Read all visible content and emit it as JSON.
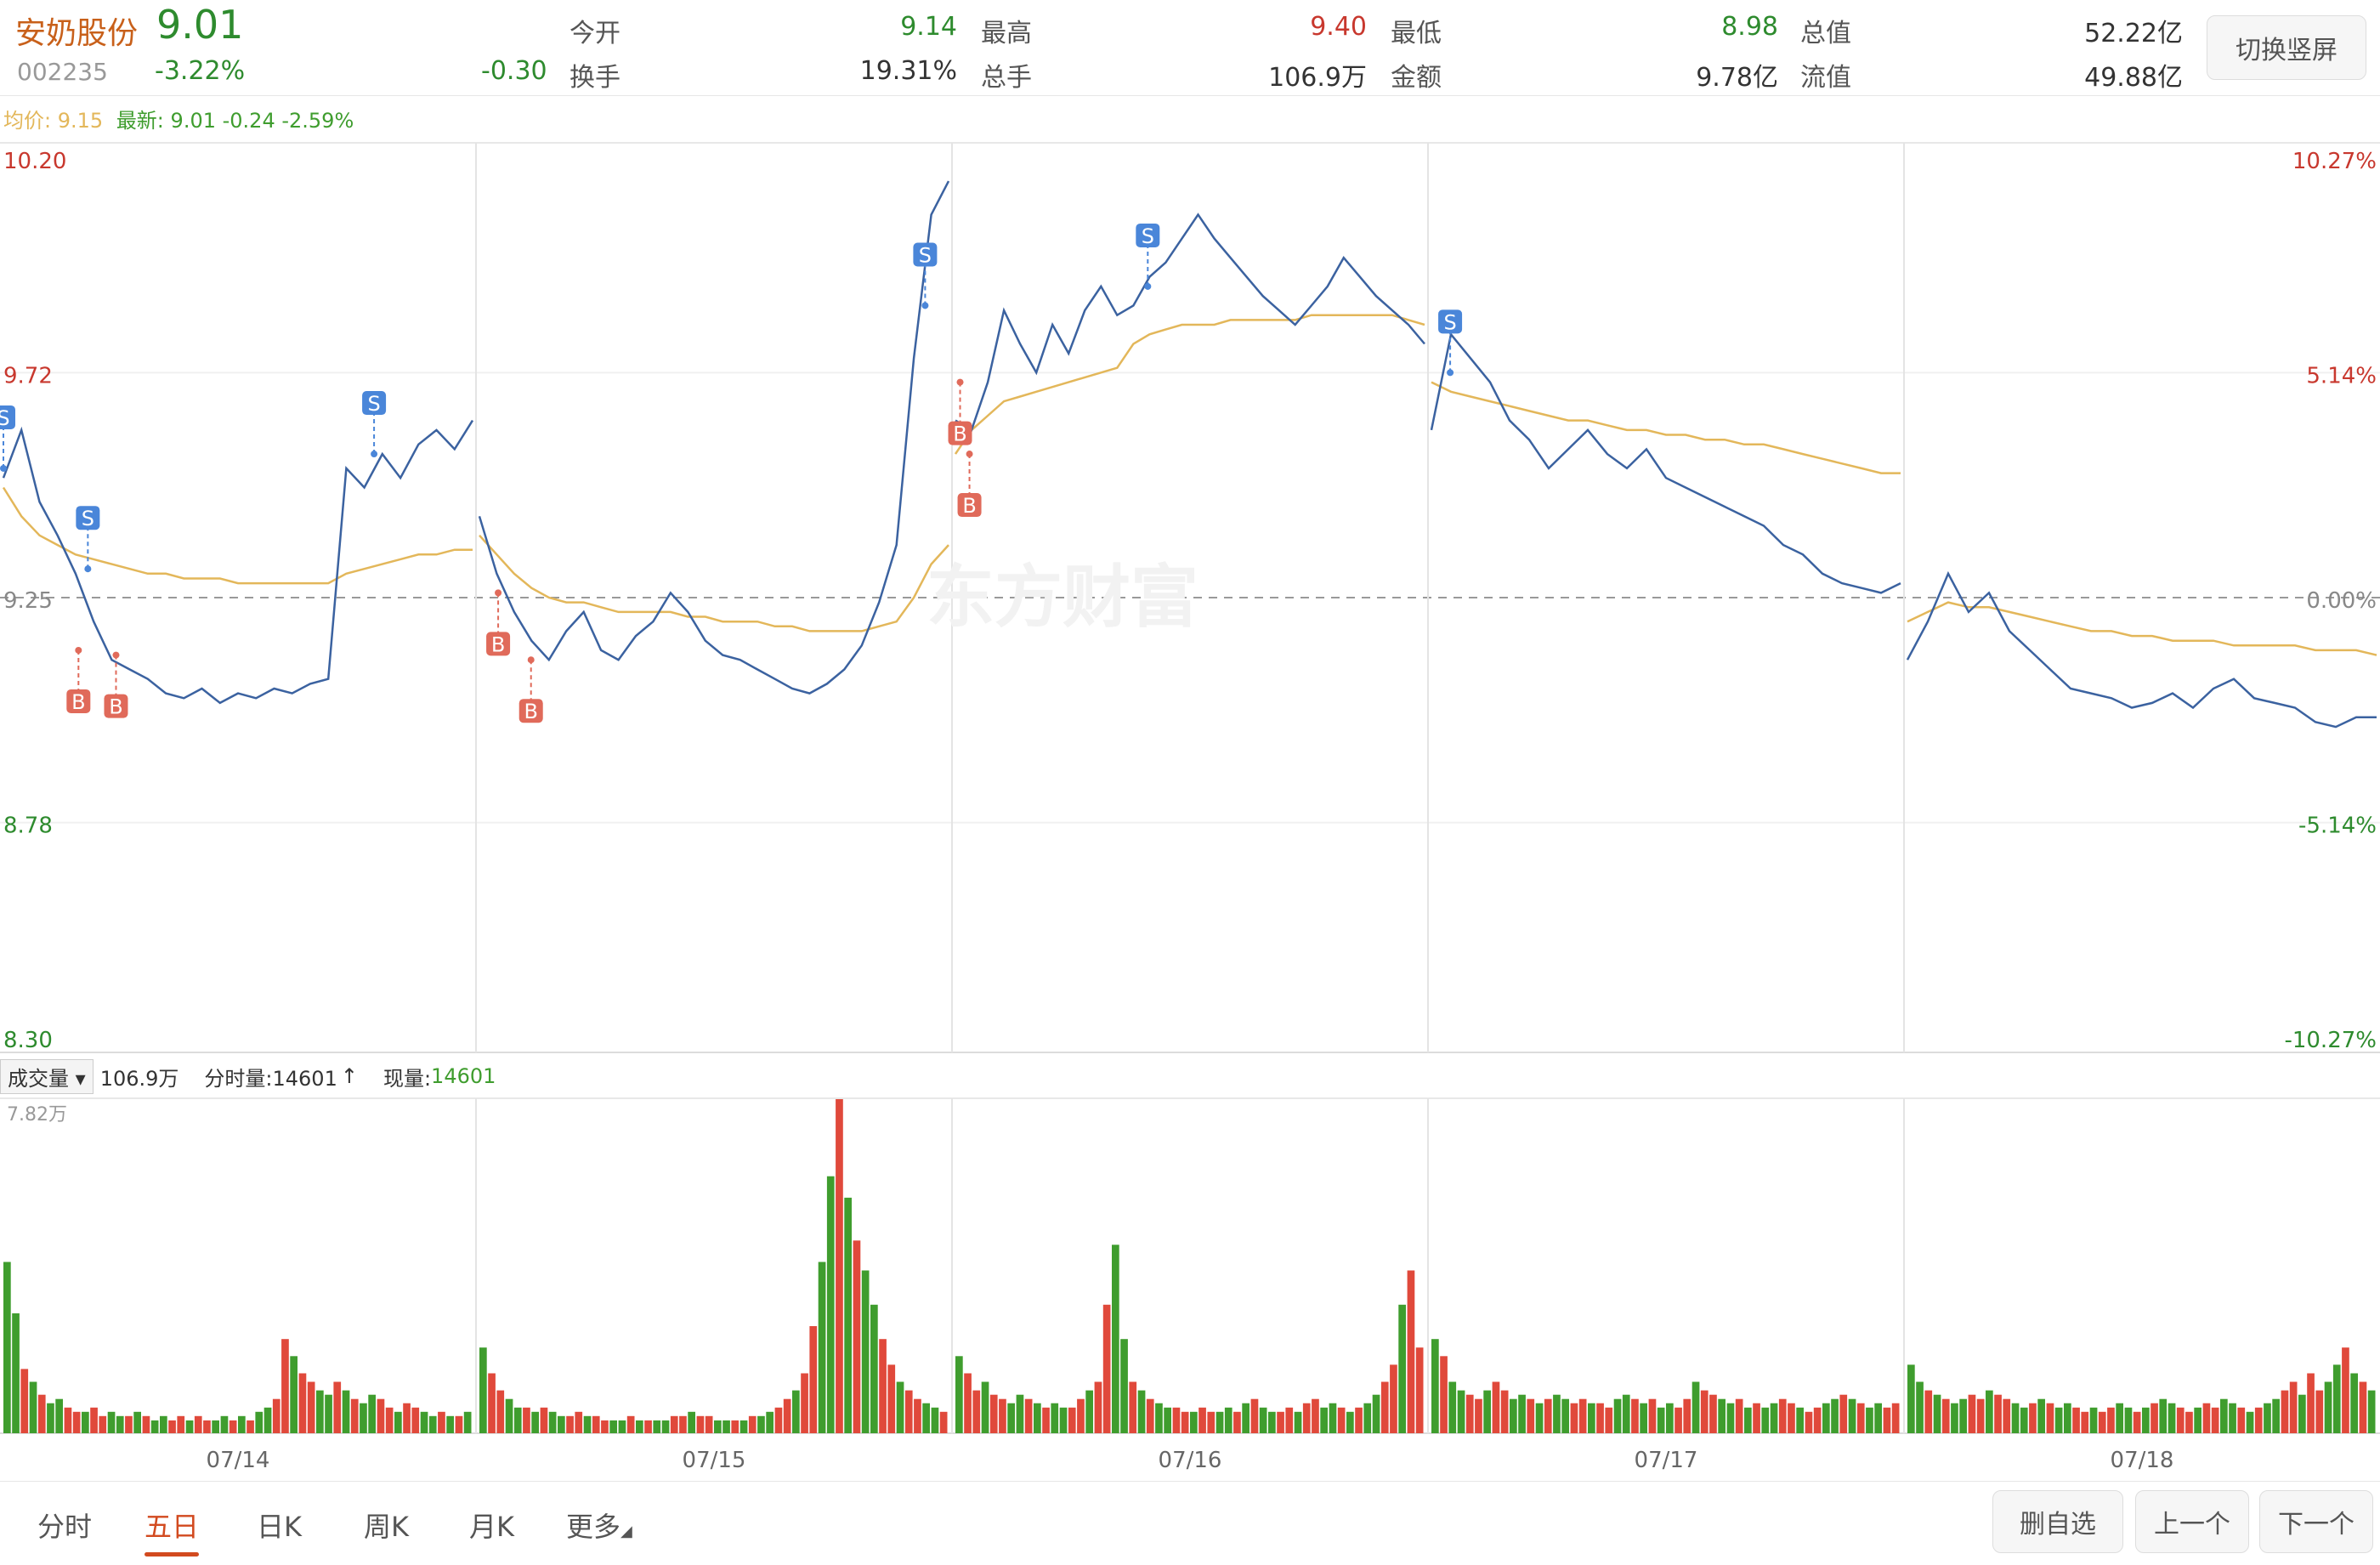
{
  "header": {
    "stock_name": "安奶股份",
    "price": "9.01",
    "code": "002235",
    "change_pct": "-3.22%",
    "change_abs": "-0.30",
    "stats": [
      {
        "label": "今开",
        "value": "9.14",
        "color": "green"
      },
      {
        "label": "最高",
        "value": "9.40",
        "color": "red"
      },
      {
        "label": "最低",
        "value": "8.98",
        "color": "green"
      },
      {
        "label": "总值",
        "value": "52.22亿",
        "color": "dark"
      },
      {
        "label": "换手",
        "value": "19.31%",
        "color": "dark"
      },
      {
        "label": "总手",
        "value": "106.9万",
        "color": "dark"
      },
      {
        "label": "金额",
        "value": "9.78亿",
        "color": "dark"
      },
      {
        "label": "流值",
        "value": "49.88亿",
        "color": "dark"
      }
    ],
    "switch_button": "切换竖屏"
  },
  "legend": {
    "avg_label": "均价:",
    "avg_value": "9.15",
    "latest_label": "最新:",
    "latest_values": "9.01 -0.24 -2.59%"
  },
  "watermark": "东方财富",
  "chart_data": {
    "type": "line",
    "y_left_ticks": [
      "10.20",
      "9.72",
      "9.25",
      "8.78",
      "8.30"
    ],
    "y_right_ticks": [
      "10.27%",
      "5.14%",
      "0.00%",
      "-5.14%",
      "-10.27%"
    ],
    "ylim": [
      8.3,
      10.2
    ],
    "prev_close": 9.25,
    "x_labels": [
      "07/14",
      "07/15",
      "07/16",
      "07/17",
      "07/18"
    ],
    "days": [
      {
        "date": "07/14",
        "price": [
          9.5,
          9.6,
          9.45,
          9.38,
          9.3,
          9.2,
          9.12,
          9.1,
          9.08,
          9.05,
          9.04,
          9.06,
          9.03,
          9.05,
          9.04,
          9.06,
          9.05,
          9.07,
          9.08,
          9.52,
          9.48,
          9.55,
          9.5,
          9.57,
          9.6,
          9.56,
          9.62
        ],
        "avg": [
          9.48,
          9.42,
          9.38,
          9.36,
          9.34,
          9.33,
          9.32,
          9.31,
          9.3,
          9.3,
          9.29,
          9.29,
          9.29,
          9.28,
          9.28,
          9.28,
          9.28,
          9.28,
          9.28,
          9.3,
          9.31,
          9.32,
          9.33,
          9.34,
          9.34,
          9.35,
          9.35
        ]
      },
      {
        "date": "07/15",
        "price": [
          9.42,
          9.3,
          9.22,
          9.16,
          9.12,
          9.18,
          9.22,
          9.14,
          9.12,
          9.17,
          9.2,
          9.26,
          9.22,
          9.16,
          9.13,
          9.12,
          9.1,
          9.08,
          9.06,
          9.05,
          9.07,
          9.1,
          9.15,
          9.24,
          9.36,
          9.75,
          10.05,
          10.12
        ],
        "avg": [
          9.38,
          9.34,
          9.3,
          9.27,
          9.25,
          9.24,
          9.24,
          9.23,
          9.22,
          9.22,
          9.22,
          9.22,
          9.21,
          9.21,
          9.2,
          9.2,
          9.2,
          9.19,
          9.19,
          9.18,
          9.18,
          9.18,
          9.18,
          9.19,
          9.2,
          9.25,
          9.32,
          9.36
        ]
      },
      {
        "date": "07/16",
        "price": [
          9.62,
          9.6,
          9.7,
          9.85,
          9.78,
          9.72,
          9.82,
          9.76,
          9.85,
          9.9,
          9.84,
          9.86,
          9.92,
          9.95,
          10.0,
          10.05,
          10.0,
          9.96,
          9.92,
          9.88,
          9.85,
          9.82,
          9.86,
          9.9,
          9.96,
          9.92,
          9.88,
          9.85,
          9.82,
          9.78
        ],
        "avg": [
          9.55,
          9.6,
          9.63,
          9.66,
          9.67,
          9.68,
          9.69,
          9.7,
          9.71,
          9.72,
          9.73,
          9.78,
          9.8,
          9.81,
          9.82,
          9.82,
          9.82,
          9.83,
          9.83,
          9.83,
          9.83,
          9.83,
          9.84,
          9.84,
          9.84,
          9.84,
          9.84,
          9.84,
          9.83,
          9.82
        ]
      },
      {
        "date": "07/17",
        "price": [
          9.6,
          9.8,
          9.75,
          9.7,
          9.62,
          9.58,
          9.52,
          9.56,
          9.6,
          9.55,
          9.52,
          9.56,
          9.5,
          9.48,
          9.46,
          9.44,
          9.42,
          9.4,
          9.36,
          9.34,
          9.3,
          9.28,
          9.27,
          9.26,
          9.28
        ],
        "avg": [
          9.7,
          9.68,
          9.67,
          9.66,
          9.65,
          9.64,
          9.63,
          9.62,
          9.62,
          9.61,
          9.6,
          9.6,
          9.59,
          9.59,
          9.58,
          9.58,
          9.57,
          9.57,
          9.56,
          9.55,
          9.54,
          9.53,
          9.52,
          9.51,
          9.51
        ]
      },
      {
        "date": "07/18",
        "price": [
          9.12,
          9.2,
          9.3,
          9.22,
          9.26,
          9.18,
          9.14,
          9.1,
          9.06,
          9.05,
          9.04,
          9.02,
          9.03,
          9.05,
          9.02,
          9.06,
          9.08,
          9.04,
          9.03,
          9.02,
          8.99,
          8.98,
          9.0,
          9.0
        ],
        "avg": [
          9.2,
          9.22,
          9.24,
          9.23,
          9.23,
          9.22,
          9.21,
          9.2,
          9.19,
          9.18,
          9.18,
          9.17,
          9.17,
          9.16,
          9.16,
          9.16,
          9.15,
          9.15,
          9.15,
          9.15,
          9.14,
          9.14,
          9.14,
          9.13
        ]
      }
    ],
    "markers": [
      {
        "type": "S",
        "day": 0,
        "pos": 0.0,
        "price": 9.52
      },
      {
        "type": "S",
        "day": 0,
        "pos": 0.18,
        "price": 9.31
      },
      {
        "type": "B",
        "day": 0,
        "pos": 0.16,
        "price": 9.14
      },
      {
        "type": "B",
        "day": 0,
        "pos": 0.24,
        "price": 9.13
      },
      {
        "type": "S",
        "day": 0,
        "pos": 0.79,
        "price": 9.55
      },
      {
        "type": "B",
        "day": 1,
        "pos": 0.04,
        "price": 9.26
      },
      {
        "type": "B",
        "day": 1,
        "pos": 0.11,
        "price": 9.12
      },
      {
        "type": "S",
        "day": 1,
        "pos": 0.95,
        "price": 9.86
      },
      {
        "type": "B",
        "day": 2,
        "pos": 0.01,
        "price": 9.7
      },
      {
        "type": "B",
        "day": 2,
        "pos": 0.03,
        "price": 9.55
      },
      {
        "type": "S",
        "day": 2,
        "pos": 0.41,
        "price": 9.9
      },
      {
        "type": "S",
        "day": 3,
        "pos": 0.04,
        "price": 9.72
      }
    ],
    "volume": {
      "label_select": "成交量",
      "total": "106.9万",
      "tick_label": "分时量:14601",
      "now_label": "现量:",
      "now_value": "14601",
      "max_label": "7.82万",
      "max": 78200,
      "series": [
        [
          40,
          28,
          15,
          12,
          9,
          7,
          8,
          6,
          5,
          5,
          6,
          4,
          5,
          4,
          4,
          5,
          4,
          3,
          4,
          3,
          4,
          3,
          4,
          3,
          3,
          4,
          3,
          4,
          3,
          5,
          6,
          8,
          22,
          18,
          14,
          12,
          10,
          9,
          12,
          10,
          8,
          7,
          9,
          8,
          6,
          5,
          7,
          6,
          5,
          4,
          5,
          4,
          4,
          5
        ],
        [
          20,
          14,
          10,
          8,
          6,
          6,
          5,
          6,
          5,
          4,
          4,
          5,
          4,
          4,
          3,
          3,
          3,
          4,
          3,
          3,
          3,
          3,
          4,
          4,
          5,
          4,
          4,
          3,
          3,
          3,
          3,
          4,
          4,
          5,
          6,
          8,
          10,
          14,
          25,
          40,
          60,
          78,
          55,
          45,
          38,
          30,
          22,
          16,
          12,
          10,
          8,
          7,
          6,
          5
        ],
        [
          18,
          14,
          10,
          12,
          9,
          8,
          7,
          9,
          8,
          7,
          6,
          7,
          6,
          6,
          8,
          10,
          12,
          30,
          44,
          22,
          12,
          10,
          8,
          7,
          6,
          6,
          5,
          5,
          6,
          5,
          5,
          6,
          5,
          7,
          8,
          6,
          5,
          5,
          6,
          5,
          7,
          8,
          6,
          7,
          6,
          5,
          6,
          7,
          9,
          12,
          16,
          30,
          38,
          20
        ],
        [
          22,
          18,
          12,
          10,
          9,
          8,
          10,
          12,
          10,
          8,
          9,
          8,
          7,
          8,
          9,
          8,
          7,
          8,
          7,
          7,
          6,
          8,
          9,
          8,
          7,
          8,
          6,
          7,
          6,
          8,
          12,
          10,
          9,
          8,
          7,
          8,
          6,
          7,
          6,
          7,
          8,
          7,
          6,
          5,
          6,
          7,
          8,
          9,
          8,
          7,
          6,
          7,
          6,
          7
        ],
        [
          16,
          12,
          10,
          9,
          8,
          7,
          8,
          9,
          8,
          10,
          9,
          8,
          7,
          6,
          7,
          8,
          7,
          6,
          7,
          6,
          5,
          6,
          5,
          6,
          7,
          6,
          5,
          6,
          7,
          8,
          7,
          6,
          5,
          6,
          7,
          6,
          8,
          7,
          6,
          5,
          6,
          7,
          8,
          10,
          12,
          9,
          14,
          10,
          12,
          16,
          20,
          14,
          12,
          10
        ]
      ]
    }
  },
  "bottom": {
    "tabs": [
      "分时",
      "五日",
      "日K",
      "周K",
      "月K",
      "更多"
    ],
    "active_tab": 1,
    "buttons": [
      "删自选",
      "上一个",
      "下一个"
    ]
  },
  "colors": {
    "price_line": "#3b62a0",
    "avg_line": "#e3b75a",
    "up": "#e0493b",
    "down": "#3f9d2e",
    "sell_marker": "#4a86d9",
    "buy_marker": "#e06a5a"
  }
}
